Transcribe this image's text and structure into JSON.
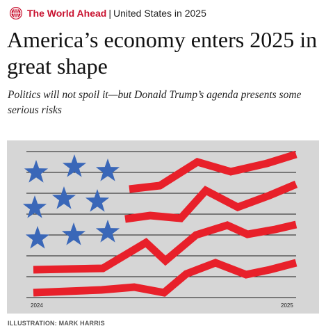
{
  "header": {
    "section": "The World Ahead",
    "separator": "|",
    "subsection": "United States in 2025",
    "brand_color": "#c8102e"
  },
  "article": {
    "headline": "America’s economy enters 2025 in great shape",
    "standfirst": "Politics will not spoil it—but Donald Trump’s agenda presents some serious risks"
  },
  "illustration": {
    "year_start": "2024",
    "year_end": "2025",
    "star_color": "#3a67b8",
    "line_color": "#e8202a",
    "background_color": "#d6d6d6",
    "credit": "ILLUSTRATION: MARK HARRIS"
  }
}
